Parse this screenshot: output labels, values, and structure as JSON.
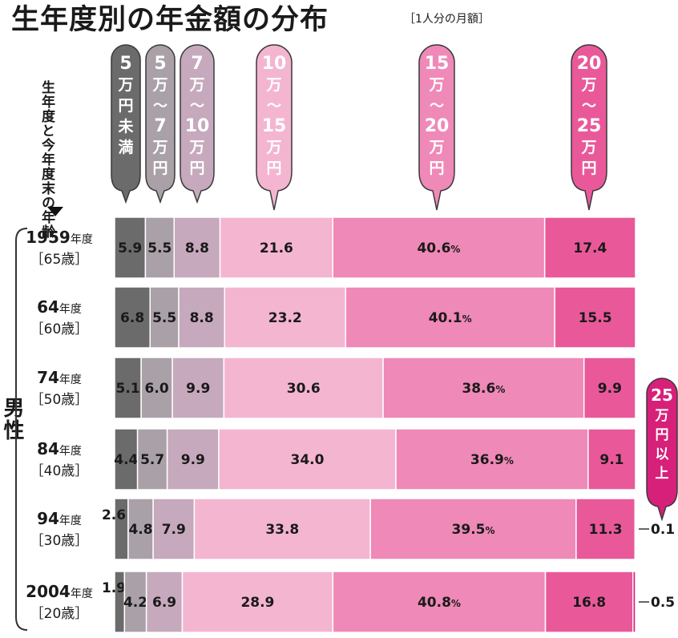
{
  "header": {
    "title": "生年度別の年金額の分布",
    "subtitle": "［1人分の月額］"
  },
  "axis_caption": "生年度と今年度末の年齢",
  "group_label": "男性",
  "colors": {
    "under5": "#6b6b6b",
    "5to7": "#a9a0a8",
    "7to10": "#c6a9bc",
    "10to15": "#f4b5d1",
    "15to20": "#ef89b7",
    "20to25": "#e9599a",
    "over25": "#d6207a"
  },
  "chart_data": {
    "type": "bar",
    "orientation": "horizontal",
    "stacked": true,
    "title": "生年度別の年金額の分布",
    "subtitle": "［1人分の月額］",
    "unit": "%",
    "categories": [
      {
        "year": "1959",
        "year_suffix": "年度",
        "age": "［65歳］"
      },
      {
        "year": "64",
        "year_suffix": "年度",
        "age": "［60歳］"
      },
      {
        "year": "74",
        "year_suffix": "年度",
        "age": "［50歳］"
      },
      {
        "year": "84",
        "year_suffix": "年度",
        "age": "［40歳］"
      },
      {
        "year": "94",
        "year_suffix": "年度",
        "age": "［30歳］"
      },
      {
        "year": "2004",
        "year_suffix": "年度",
        "age": "［20歳］"
      }
    ],
    "series": [
      {
        "name": "5万円未満",
        "color": "#6b6b6b",
        "values": [
          5.9,
          6.8,
          5.1,
          4.4,
          2.6,
          1.9
        ]
      },
      {
        "name": "5万～7万円",
        "color": "#a9a0a8",
        "values": [
          5.5,
          5.5,
          6.0,
          5.7,
          4.8,
          4.2
        ]
      },
      {
        "name": "7万～10万円",
        "color": "#c6a9bc",
        "values": [
          8.8,
          8.8,
          9.9,
          9.9,
          7.9,
          6.9
        ]
      },
      {
        "name": "10万～15万円",
        "color": "#f4b5d1",
        "values": [
          21.6,
          23.2,
          30.6,
          34.0,
          33.8,
          28.9
        ]
      },
      {
        "name": "15万～20万円",
        "color": "#ef89b7",
        "values": [
          40.6,
          40.1,
          38.6,
          36.9,
          39.5,
          40.8
        ]
      },
      {
        "name": "20万～25万円",
        "color": "#e9599a",
        "values": [
          17.4,
          15.5,
          9.9,
          9.1,
          11.3,
          16.8
        ]
      },
      {
        "name": "25万円以上",
        "color": "#d6207a",
        "values": [
          null,
          null,
          null,
          null,
          0.1,
          0.5
        ]
      }
    ],
    "segment_labels": [
      [
        "5.9",
        "5.5",
        "8.8",
        "21.6",
        "40.6",
        "17.4",
        ""
      ],
      [
        "6.8",
        "5.5",
        "8.8",
        "23.2",
        "40.1",
        "15.5",
        ""
      ],
      [
        "5.1",
        "6.0",
        "9.9",
        "30.6",
        "38.6",
        "9.9",
        ""
      ],
      [
        "4.4",
        "5.7",
        "9.9",
        "34.0",
        "36.9",
        "9.1",
        ""
      ],
      [
        "2.6",
        "4.8",
        "7.9",
        "33.8",
        "39.5",
        "11.3",
        "0.1"
      ],
      [
        "1.9",
        "4.2",
        "6.9",
        "28.9",
        "40.8",
        "16.8",
        "0.5"
      ]
    ],
    "percent_sign": "%",
    "legend_bubbles": [
      {
        "lines": [
          "5",
          "万",
          "円",
          "未",
          "満"
        ]
      },
      {
        "lines": [
          "5",
          "万",
          "～",
          "7",
          "万",
          "円"
        ]
      },
      {
        "lines": [
          "7",
          "万",
          "～",
          "10",
          "万",
          "円"
        ]
      },
      {
        "lines": [
          "10",
          "万",
          "～",
          "15",
          "万",
          "円"
        ]
      },
      {
        "lines": [
          "15",
          "万",
          "～",
          "20",
          "万",
          "円"
        ]
      },
      {
        "lines": [
          "20",
          "万",
          "～",
          "25",
          "万",
          "円"
        ]
      },
      {
        "lines": [
          "25",
          "万",
          "円",
          "以",
          "上"
        ]
      }
    ],
    "xlim": [
      0,
      100
    ],
    "grid": false,
    "legend": "top (callout bubbles)"
  }
}
